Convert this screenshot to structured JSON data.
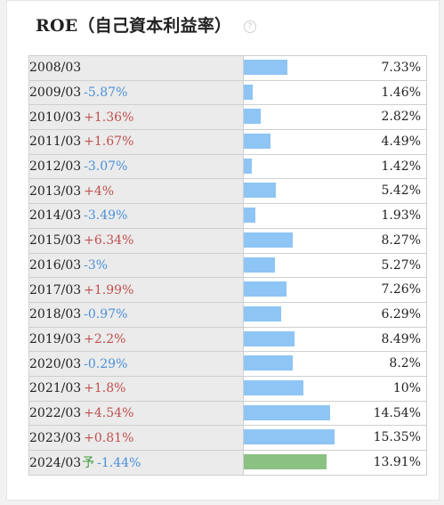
{
  "title": "ROE（自己資本利益率）",
  "help_icon": "?",
  "colors": {
    "positive": "#c0504d",
    "negative": "#4a90d9",
    "bar": "#8ec5f5",
    "forecast_bar": "#8cc184"
  },
  "rows": [
    {
      "year": "2008/03",
      "delta": "",
      "value": "7.33%",
      "v": 7.33,
      "sign": "none"
    },
    {
      "year": "2009/03",
      "delta": "-5.87%",
      "value": "1.46%",
      "v": 1.46,
      "sign": "neg"
    },
    {
      "year": "2010/03",
      "delta": "+1.36%",
      "value": "2.82%",
      "v": 2.82,
      "sign": "pos"
    },
    {
      "year": "2011/03",
      "delta": "+1.67%",
      "value": "4.49%",
      "v": 4.49,
      "sign": "pos"
    },
    {
      "year": "2012/03",
      "delta": "-3.07%",
      "value": "1.42%",
      "v": 1.42,
      "sign": "neg"
    },
    {
      "year": "2013/03",
      "delta": "+4%",
      "value": "5.42%",
      "v": 5.42,
      "sign": "pos"
    },
    {
      "year": "2014/03",
      "delta": "-3.49%",
      "value": "1.93%",
      "v": 1.93,
      "sign": "neg"
    },
    {
      "year": "2015/03",
      "delta": "+6.34%",
      "value": "8.27%",
      "v": 8.27,
      "sign": "pos"
    },
    {
      "year": "2016/03",
      "delta": "-3%",
      "value": "5.27%",
      "v": 5.27,
      "sign": "neg"
    },
    {
      "year": "2017/03",
      "delta": "+1.99%",
      "value": "7.26%",
      "v": 7.26,
      "sign": "pos"
    },
    {
      "year": "2018/03",
      "delta": "-0.97%",
      "value": "6.29%",
      "v": 6.29,
      "sign": "neg"
    },
    {
      "year": "2019/03",
      "delta": "+2.2%",
      "value": "8.49%",
      "v": 8.49,
      "sign": "pos"
    },
    {
      "year": "2020/03",
      "delta": "-0.29%",
      "value": "8.2%",
      "v": 8.2,
      "sign": "neg"
    },
    {
      "year": "2021/03",
      "delta": "+1.8%",
      "value": "10%",
      "v": 10,
      "sign": "pos"
    },
    {
      "year": "2022/03",
      "delta": "+4.54%",
      "value": "14.54%",
      "v": 14.54,
      "sign": "pos"
    },
    {
      "year": "2023/03",
      "delta": "+0.81%",
      "value": "15.35%",
      "v": 15.35,
      "sign": "pos"
    },
    {
      "year": "2024/03",
      "forecast": "予",
      "delta": "-1.44%",
      "value": "13.91%",
      "v": 13.91,
      "sign": "neg"
    }
  ],
  "chart_data": {
    "type": "bar",
    "categories": [
      "2008/03",
      "2009/03",
      "2010/03",
      "2011/03",
      "2012/03",
      "2013/03",
      "2014/03",
      "2015/03",
      "2016/03",
      "2017/03",
      "2018/03",
      "2019/03",
      "2020/03",
      "2021/03",
      "2022/03",
      "2023/03",
      "2024/03"
    ],
    "values": [
      7.33,
      1.46,
      2.82,
      4.49,
      1.42,
      5.42,
      1.93,
      8.27,
      5.27,
      7.26,
      6.29,
      8.49,
      8.2,
      10,
      14.54,
      15.35,
      13.91
    ]
  }
}
